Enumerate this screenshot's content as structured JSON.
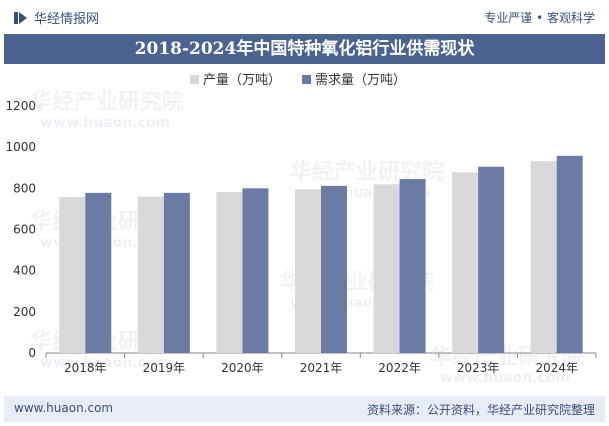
{
  "header": {
    "brand": "华经情报网",
    "tagline": "专业严谨 • 客观科学"
  },
  "footer": {
    "website": "www.huaon.com",
    "source": "资料来源：公开资料，华经产业研究院整理"
  },
  "watermark": {
    "text": "华经产业研究院",
    "url": "www.huaon.com"
  },
  "colors": {
    "title_bg": "#4c6291",
    "production": "#d9d9d9",
    "demand": "#6b7ba3"
  },
  "chart_data": {
    "type": "bar",
    "title": "2018-2024年中国特种氧化铝行业供需现状",
    "categories": [
      "2018年",
      "2019年",
      "2020年",
      "2021年",
      "2022年",
      "2023年",
      "2024年"
    ],
    "series": [
      {
        "name": "产量（万吨）",
        "values": [
          758,
          760,
          782,
          795,
          820,
          878,
          932
        ]
      },
      {
        "name": "需求量（万吨）",
        "values": [
          778,
          778,
          800,
          812,
          845,
          905,
          958
        ]
      }
    ],
    "ylim": [
      0,
      1200
    ],
    "yticks": [
      0,
      200,
      400,
      600,
      800,
      1000,
      1200
    ],
    "xlabel": "",
    "ylabel": "",
    "legend": "top-center",
    "grid": false
  }
}
